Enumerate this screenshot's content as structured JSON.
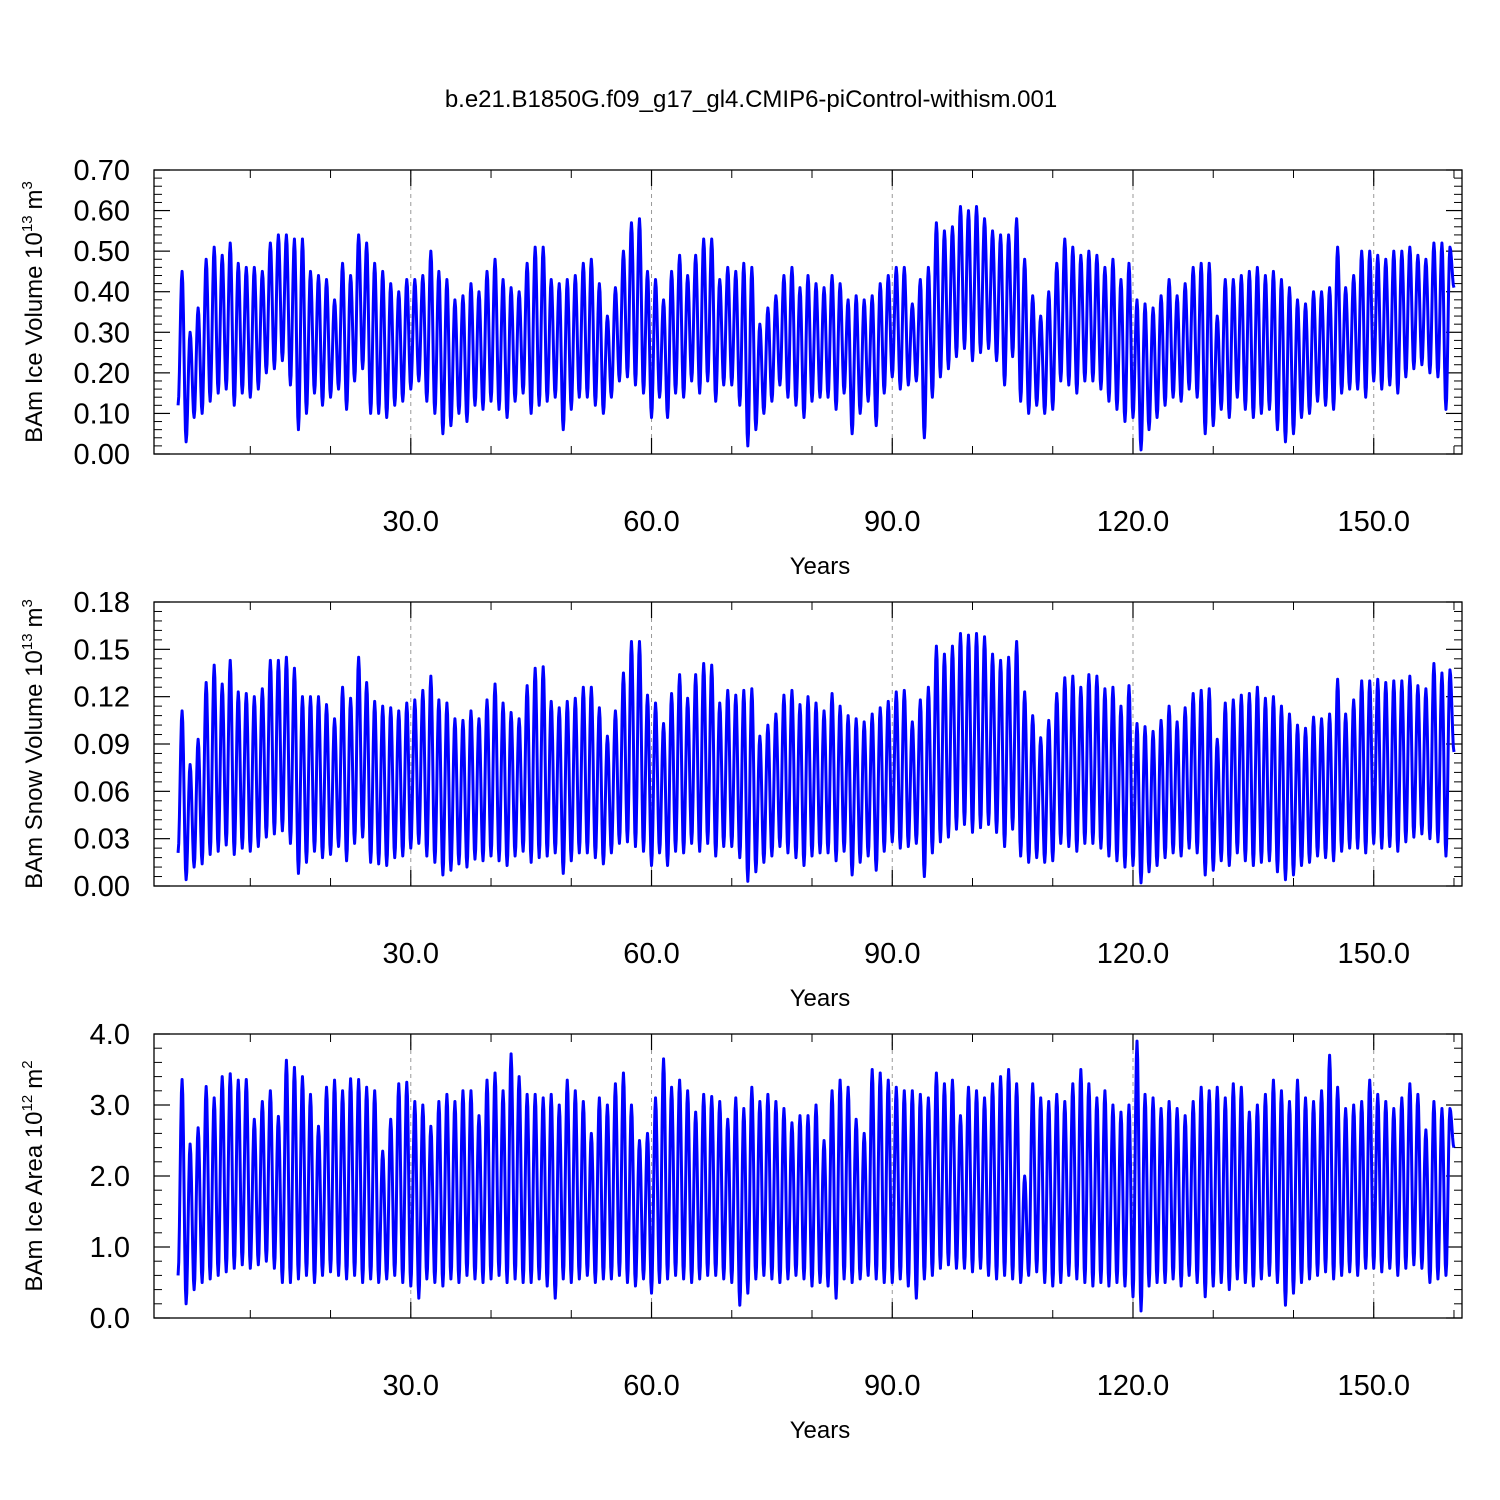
{
  "title": "b.e21.B1850G.f09_g17_gl4.CMIP6-piControl-withism.001",
  "series_color": "#0000ff",
  "chart_data": [
    {
      "type": "line",
      "name": "ice-volume",
      "ylabel": {
        "text": "BAm Ice Volume 10",
        "exp": "13",
        "unit": "m",
        "unit_exp": "3"
      },
      "xlabel": "Years",
      "xlim": [
        1,
        160
      ],
      "ylim": [
        0.0,
        0.7
      ],
      "xticks": [
        30,
        60,
        90,
        120,
        150
      ],
      "xtick_labels": [
        "30.0",
        "60.0",
        "90.0",
        "120.0",
        "150.0"
      ],
      "yticks": [
        0.0,
        0.1,
        0.2,
        0.3,
        0.4,
        0.5,
        0.6,
        0.7
      ],
      "ytick_labels": [
        "0.00",
        "0.10",
        "0.20",
        "0.30",
        "0.40",
        "0.50",
        "0.60",
        "0.70"
      ],
      "grid": "x-dashed",
      "annual_max": [
        0.45,
        0.3,
        0.36,
        0.48,
        0.51,
        0.49,
        0.52,
        0.47,
        0.46,
        0.46,
        0.45,
        0.52,
        0.54,
        0.54,
        0.53,
        0.53,
        0.45,
        0.44,
        0.43,
        0.38,
        0.47,
        0.44,
        0.54,
        0.52,
        0.47,
        0.45,
        0.42,
        0.4,
        0.43,
        0.43,
        0.44,
        0.5,
        0.45,
        0.43,
        0.38,
        0.39,
        0.42,
        0.4,
        0.45,
        0.48,
        0.43,
        0.41,
        0.4,
        0.47,
        0.51,
        0.51,
        0.43,
        0.42,
        0.43,
        0.44,
        0.47,
        0.48,
        0.42,
        0.34,
        0.41,
        0.5,
        0.57,
        0.58,
        0.45,
        0.43,
        0.38,
        0.45,
        0.49,
        0.44,
        0.49,
        0.53,
        0.53,
        0.43,
        0.46,
        0.45,
        0.47,
        0.46,
        0.32,
        0.36,
        0.39,
        0.44,
        0.46,
        0.41,
        0.44,
        0.42,
        0.41,
        0.44,
        0.42,
        0.38,
        0.39,
        0.38,
        0.39,
        0.42,
        0.44,
        0.46,
        0.46,
        0.37,
        0.43,
        0.46,
        0.57,
        0.55,
        0.56,
        0.61,
        0.6,
        0.61,
        0.58,
        0.55,
        0.54,
        0.54,
        0.58,
        0.48,
        0.39,
        0.34,
        0.4,
        0.47,
        0.53,
        0.51,
        0.49,
        0.5,
        0.49,
        0.46,
        0.48,
        0.43,
        0.47,
        0.38,
        0.37,
        0.36,
        0.39,
        0.43,
        0.39,
        0.42,
        0.46,
        0.47,
        0.47,
        0.34,
        0.43,
        0.43,
        0.44,
        0.45,
        0.46,
        0.44,
        0.45,
        0.43,
        0.41,
        0.38,
        0.37,
        0.4,
        0.4,
        0.41,
        0.51,
        0.41,
        0.44,
        0.5,
        0.5,
        0.49,
        0.48,
        0.5,
        0.5,
        0.51,
        0.49,
        0.48,
        0.52,
        0.52,
        0.51,
        0.51
      ],
      "annual_min": [
        0.12,
        0.03,
        0.09,
        0.1,
        0.13,
        0.15,
        0.16,
        0.12,
        0.15,
        0.14,
        0.16,
        0.2,
        0.21,
        0.23,
        0.17,
        0.06,
        0.1,
        0.15,
        0.12,
        0.14,
        0.16,
        0.11,
        0.18,
        0.21,
        0.1,
        0.1,
        0.09,
        0.12,
        0.13,
        0.16,
        0.18,
        0.13,
        0.1,
        0.05,
        0.07,
        0.1,
        0.08,
        0.12,
        0.11,
        0.13,
        0.11,
        0.09,
        0.13,
        0.15,
        0.1,
        0.12,
        0.13,
        0.14,
        0.06,
        0.11,
        0.14,
        0.14,
        0.12,
        0.1,
        0.14,
        0.18,
        0.19,
        0.17,
        0.15,
        0.09,
        0.14,
        0.09,
        0.15,
        0.14,
        0.18,
        0.15,
        0.18,
        0.13,
        0.17,
        0.17,
        0.12,
        0.02,
        0.06,
        0.1,
        0.13,
        0.17,
        0.14,
        0.12,
        0.09,
        0.13,
        0.14,
        0.14,
        0.11,
        0.15,
        0.05,
        0.1,
        0.13,
        0.07,
        0.15,
        0.19,
        0.16,
        0.17,
        0.18,
        0.04,
        0.14,
        0.19,
        0.21,
        0.24,
        0.26,
        0.23,
        0.25,
        0.26,
        0.23,
        0.17,
        0.24,
        0.13,
        0.1,
        0.12,
        0.1,
        0.11,
        0.18,
        0.17,
        0.15,
        0.18,
        0.18,
        0.16,
        0.13,
        0.11,
        0.08,
        0.09,
        0.01,
        0.06,
        0.09,
        0.12,
        0.14,
        0.13,
        0.16,
        0.14,
        0.05,
        0.07,
        0.11,
        0.09,
        0.14,
        0.11,
        0.09,
        0.1,
        0.11,
        0.06,
        0.03,
        0.05,
        0.09,
        0.1,
        0.13,
        0.12,
        0.11,
        0.15,
        0.16,
        0.16,
        0.14,
        0.18,
        0.16,
        0.17,
        0.15,
        0.19,
        0.21,
        0.22,
        0.2,
        0.19,
        0.11,
        0.41
      ]
    },
    {
      "type": "line",
      "name": "snow-volume",
      "ylabel": {
        "text": "BAm Snow Volume 10",
        "exp": "13",
        "unit": "m",
        "unit_exp": "3"
      },
      "xlabel": "Years",
      "xlim": [
        1,
        160
      ],
      "ylim": [
        0.0,
        0.18
      ],
      "xticks": [
        30,
        60,
        90,
        120,
        150
      ],
      "xtick_labels": [
        "30.0",
        "60.0",
        "90.0",
        "120.0",
        "150.0"
      ],
      "yticks": [
        0.0,
        0.03,
        0.06,
        0.09,
        0.12,
        0.15,
        0.18
      ],
      "ytick_labels": [
        "0.00",
        "0.03",
        "0.06",
        "0.09",
        "0.12",
        "0.15",
        "0.18"
      ],
      "grid": "x-dashed",
      "annual_max": [
        0.111,
        0.077,
        0.093,
        0.129,
        0.14,
        0.128,
        0.143,
        0.123,
        0.122,
        0.12,
        0.125,
        0.143,
        0.143,
        0.145,
        0.138,
        0.12,
        0.12,
        0.12,
        0.115,
        0.106,
        0.126,
        0.119,
        0.145,
        0.129,
        0.117,
        0.114,
        0.113,
        0.111,
        0.116,
        0.118,
        0.124,
        0.133,
        0.118,
        0.116,
        0.106,
        0.105,
        0.111,
        0.106,
        0.118,
        0.128,
        0.116,
        0.11,
        0.106,
        0.127,
        0.138,
        0.139,
        0.117,
        0.113,
        0.117,
        0.119,
        0.126,
        0.126,
        0.113,
        0.095,
        0.111,
        0.135,
        0.155,
        0.155,
        0.121,
        0.116,
        0.103,
        0.122,
        0.134,
        0.119,
        0.134,
        0.141,
        0.14,
        0.116,
        0.124,
        0.121,
        0.124,
        0.125,
        0.095,
        0.102,
        0.109,
        0.121,
        0.124,
        0.115,
        0.12,
        0.116,
        0.111,
        0.122,
        0.114,
        0.108,
        0.106,
        0.104,
        0.109,
        0.113,
        0.117,
        0.123,
        0.124,
        0.104,
        0.118,
        0.126,
        0.152,
        0.147,
        0.152,
        0.16,
        0.159,
        0.16,
        0.158,
        0.147,
        0.143,
        0.145,
        0.155,
        0.123,
        0.108,
        0.094,
        0.105,
        0.122,
        0.132,
        0.133,
        0.126,
        0.134,
        0.133,
        0.125,
        0.126,
        0.114,
        0.127,
        0.103,
        0.101,
        0.098,
        0.105,
        0.114,
        0.104,
        0.113,
        0.122,
        0.124,
        0.125,
        0.093,
        0.116,
        0.118,
        0.121,
        0.122,
        0.126,
        0.119,
        0.12,
        0.114,
        0.109,
        0.102,
        0.1,
        0.107,
        0.106,
        0.109,
        0.131,
        0.109,
        0.118,
        0.13,
        0.13,
        0.131,
        0.129,
        0.13,
        0.13,
        0.133,
        0.127,
        0.125,
        0.141,
        0.135,
        0.137,
        0.137
      ],
      "annual_min": [
        0.021,
        0.004,
        0.012,
        0.014,
        0.02,
        0.022,
        0.026,
        0.02,
        0.024,
        0.022,
        0.025,
        0.031,
        0.033,
        0.035,
        0.027,
        0.008,
        0.015,
        0.022,
        0.018,
        0.02,
        0.025,
        0.016,
        0.027,
        0.031,
        0.015,
        0.014,
        0.013,
        0.018,
        0.019,
        0.024,
        0.027,
        0.019,
        0.015,
        0.007,
        0.01,
        0.014,
        0.012,
        0.017,
        0.016,
        0.019,
        0.016,
        0.013,
        0.019,
        0.022,
        0.015,
        0.018,
        0.019,
        0.021,
        0.008,
        0.016,
        0.021,
        0.021,
        0.018,
        0.014,
        0.021,
        0.027,
        0.028,
        0.025,
        0.022,
        0.013,
        0.021,
        0.013,
        0.022,
        0.021,
        0.027,
        0.022,
        0.027,
        0.019,
        0.025,
        0.025,
        0.018,
        0.003,
        0.009,
        0.015,
        0.019,
        0.025,
        0.021,
        0.018,
        0.013,
        0.019,
        0.021,
        0.021,
        0.016,
        0.022,
        0.007,
        0.015,
        0.019,
        0.01,
        0.022,
        0.028,
        0.024,
        0.025,
        0.027,
        0.006,
        0.021,
        0.028,
        0.031,
        0.036,
        0.039,
        0.034,
        0.037,
        0.039,
        0.034,
        0.025,
        0.036,
        0.019,
        0.015,
        0.018,
        0.015,
        0.016,
        0.027,
        0.025,
        0.022,
        0.027,
        0.027,
        0.024,
        0.019,
        0.016,
        0.012,
        0.013,
        0.002,
        0.009,
        0.013,
        0.018,
        0.021,
        0.019,
        0.024,
        0.021,
        0.007,
        0.01,
        0.016,
        0.013,
        0.021,
        0.016,
        0.013,
        0.015,
        0.016,
        0.009,
        0.004,
        0.007,
        0.013,
        0.015,
        0.019,
        0.018,
        0.016,
        0.022,
        0.024,
        0.024,
        0.021,
        0.027,
        0.024,
        0.025,
        0.022,
        0.028,
        0.031,
        0.033,
        0.03,
        0.028,
        0.019,
        0.085
      ]
    },
    {
      "type": "line",
      "name": "ice-area",
      "ylabel": {
        "text": "BAm Ice Area 10",
        "exp": "12",
        "unit": "m",
        "unit_exp": "2"
      },
      "xlabel": "Years",
      "xlim": [
        1,
        160
      ],
      "ylim": [
        0.0,
        4.0
      ],
      "xticks": [
        30,
        60,
        90,
        120,
        150
      ],
      "xtick_labels": [
        "30.0",
        "60.0",
        "90.0",
        "120.0",
        "150.0"
      ],
      "yticks": [
        0.0,
        1.0,
        2.0,
        3.0,
        4.0
      ],
      "ytick_labels": [
        "0.0",
        "1.0",
        "2.0",
        "3.0",
        "4.0"
      ],
      "grid": "x-dashed",
      "annual_max": [
        3.36,
        2.45,
        2.68,
        3.26,
        3.1,
        3.4,
        3.44,
        3.35,
        3.36,
        2.8,
        3.05,
        3.2,
        2.84,
        3.63,
        3.53,
        3.4,
        3.15,
        2.7,
        3.25,
        3.35,
        3.2,
        3.37,
        3.36,
        3.25,
        3.2,
        2.35,
        2.8,
        3.3,
        3.32,
        3.05,
        3.0,
        2.7,
        3.05,
        3.15,
        3.05,
        3.2,
        3.2,
        2.85,
        3.35,
        3.45,
        3.2,
        3.72,
        3.4,
        3.15,
        3.15,
        3.1,
        3.15,
        3.0,
        3.35,
        3.2,
        3.05,
        2.6,
        3.1,
        3.0,
        3.3,
        3.45,
        3.0,
        2.5,
        2.6,
        3.1,
        3.65,
        3.25,
        3.35,
        3.2,
        2.9,
        3.15,
        3.12,
        3.05,
        2.8,
        3.1,
        2.95,
        3.25,
        3.05,
        3.15,
        3.05,
        2.95,
        2.75,
        2.85,
        2.85,
        3.0,
        2.5,
        3.2,
        3.35,
        3.25,
        2.8,
        2.6,
        3.5,
        3.45,
        3.35,
        3.25,
        3.2,
        3.2,
        3.15,
        3.1,
        3.45,
        3.3,
        3.35,
        2.85,
        3.25,
        3.2,
        3.1,
        3.3,
        3.4,
        3.5,
        3.3,
        2.0,
        3.3,
        3.1,
        3.05,
        3.15,
        3.05,
        3.3,
        3.5,
        3.3,
        3.1,
        3.2,
        3.0,
        2.9,
        3.0,
        3.9,
        3.15,
        3.1,
        2.95,
        3.05,
        2.95,
        2.85,
        3.05,
        3.25,
        3.2,
        3.25,
        3.1,
        3.3,
        3.25,
        2.9,
        3.0,
        3.15,
        3.35,
        3.2,
        3.05,
        3.35,
        3.1,
        3.05,
        3.2,
        3.7,
        3.25,
        2.95,
        3.0,
        3.05,
        3.35,
        3.15,
        3.05,
        2.95,
        3.1,
        3.3,
        3.15,
        2.65,
        3.05,
        2.95,
        2.95,
        3.35
      ],
      "annual_min": [
        0.6,
        0.2,
        0.4,
        0.5,
        0.55,
        0.6,
        0.65,
        0.7,
        0.75,
        0.7,
        0.75,
        0.8,
        0.7,
        0.5,
        0.5,
        0.55,
        0.6,
        0.5,
        0.6,
        0.65,
        0.6,
        0.55,
        0.6,
        0.5,
        0.55,
        0.5,
        0.55,
        0.6,
        0.5,
        0.45,
        0.28,
        0.55,
        0.5,
        0.45,
        0.55,
        0.5,
        0.6,
        0.55,
        0.5,
        0.55,
        0.6,
        0.5,
        0.55,
        0.5,
        0.5,
        0.55,
        0.45,
        0.28,
        0.55,
        0.5,
        0.55,
        0.6,
        0.5,
        0.55,
        0.55,
        0.6,
        0.5,
        0.45,
        0.55,
        0.35,
        0.5,
        0.55,
        0.6,
        0.55,
        0.5,
        0.55,
        0.6,
        0.6,
        0.55,
        0.5,
        0.18,
        0.35,
        0.55,
        0.6,
        0.55,
        0.5,
        0.55,
        0.6,
        0.55,
        0.45,
        0.5,
        0.45,
        0.28,
        0.55,
        0.5,
        0.55,
        0.6,
        0.55,
        0.5,
        0.5,
        0.55,
        0.45,
        0.28,
        0.55,
        0.6,
        0.7,
        0.75,
        0.7,
        0.7,
        0.65,
        0.7,
        0.6,
        0.55,
        0.6,
        0.55,
        0.5,
        0.6,
        0.65,
        0.5,
        0.45,
        0.5,
        0.6,
        0.55,
        0.5,
        0.45,
        0.5,
        0.45,
        0.5,
        0.45,
        0.3,
        0.1,
        0.45,
        0.5,
        0.5,
        0.55,
        0.45,
        0.6,
        0.5,
        0.3,
        0.45,
        0.5,
        0.4,
        0.55,
        0.5,
        0.45,
        0.55,
        0.6,
        0.5,
        0.18,
        0.35,
        0.5,
        0.55,
        0.6,
        0.65,
        0.55,
        0.6,
        0.65,
        0.6,
        0.7,
        0.7,
        0.65,
        0.7,
        0.6,
        0.7,
        0.75,
        0.7,
        0.5,
        0.55,
        0.6,
        2.4
      ]
    }
  ]
}
